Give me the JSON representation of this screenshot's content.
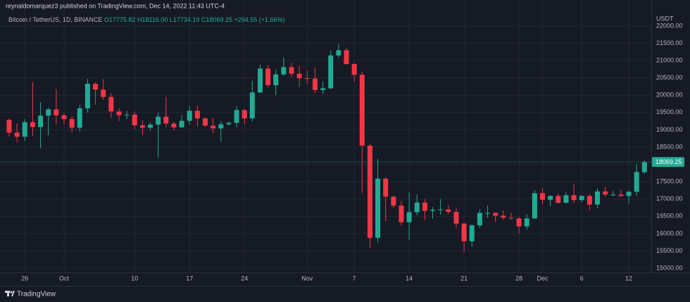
{
  "header": {
    "published": "reynaldomarquez3 published on TradingView.com, Dec 14, 2022 11:43 UTC-4",
    "symbol": "Bitcoin / TetherUS, 1D, BINANCE",
    "ohlc": [
      "O17775.82",
      "H18116.00",
      "L17734.19",
      "C18069.25",
      "+294.55 (+1.66%)"
    ]
  },
  "chart_data": {
    "type": "candlestick",
    "currency": "USDT",
    "up_color": "#22ab94",
    "down_color": "#f23645",
    "grid": true,
    "categories": [
      null,
      null,
      "26",
      null,
      null,
      null,
      null,
      "Oct",
      null,
      null,
      null,
      null,
      null,
      null,
      null,
      null,
      "10",
      null,
      null,
      null,
      null,
      null,
      null,
      "17",
      null,
      null,
      null,
      null,
      null,
      null,
      "24",
      null,
      null,
      null,
      null,
      null,
      null,
      null,
      "Nov",
      null,
      null,
      null,
      null,
      null,
      "7",
      null,
      null,
      null,
      null,
      null,
      null,
      "14",
      null,
      null,
      null,
      null,
      null,
      null,
      "21",
      null,
      null,
      null,
      null,
      null,
      null,
      "28",
      null,
      null,
      "Dec",
      null,
      null,
      null,
      null,
      "6",
      null,
      null,
      null,
      null,
      null,
      "12",
      null,
      null
    ],
    "open": [
      19290,
      18920,
      18800,
      19220,
      19080,
      19410,
      19590,
      19420,
      19310,
      19060,
      19620,
      20330,
      20160,
      19950,
      19530,
      19420,
      19440,
      19130,
      19060,
      19150,
      19380,
      19180,
      19070,
      19260,
      19550,
      19330,
      19120,
      19040,
      19160,
      19200,
      19570,
      19330,
      20080,
      20770,
      20290,
      20600,
      20810,
      20620,
      20490,
      20480,
      20150,
      20200,
      21150,
      21300,
      20900,
      20590,
      18540,
      15880,
      17590,
      17070,
      16810,
      16330,
      16620,
      16900,
      16660,
      16690,
      16700,
      16630,
      16290,
      15780,
      16240,
      16600,
      16600,
      16520,
      16460,
      16440,
      16210,
      16440,
      17170,
      16980,
      17090,
      16890,
      17110,
      16970,
      17090,
      16840,
      17220,
      17130,
      17130,
      17090,
      17210,
      17775.82
    ],
    "high": [
      19320,
      19180,
      19310,
      20380,
      19790,
      19640,
      20180,
      19480,
      19400,
      19720,
      20470,
      20370,
      20460,
      20060,
      19620,
      19550,
      19530,
      19270,
      19220,
      19500,
      19950,
      19230,
      19420,
      19680,
      19700,
      19360,
      19350,
      19250,
      19250,
      19690,
      19600,
      20420,
      20880,
      20860,
      20750,
      21090,
      20930,
      20850,
      20700,
      20800,
      20390,
      21300,
      21480,
      21370,
      20930,
      20670,
      18600,
      18160,
      17630,
      17090,
      16950,
      17190,
      17130,
      17000,
      16770,
      17000,
      16820,
      16740,
      16310,
      16270,
      16700,
      16810,
      16610,
      16670,
      16600,
      16480,
      16560,
      17250,
      17320,
      17110,
      17160,
      17200,
      17420,
      17110,
      17140,
      17300,
      17360,
      17230,
      17270,
      17240,
      18000,
      18116
    ],
    "low": [
      18810,
      18630,
      18680,
      18810,
      18470,
      18840,
      19150,
      19160,
      18920,
      18960,
      19500,
      19730,
      19870,
      19340,
      19250,
      19310,
      19020,
      18860,
      18980,
      18190,
      19070,
      18980,
      19060,
      19160,
      19100,
      19080,
      18900,
      18650,
      19120,
      19070,
      19160,
      19240,
      20060,
      20220,
      20000,
      20560,
      20520,
      20230,
      20330,
      20060,
      20030,
      20180,
      21080,
      20880,
      20390,
      17170,
      15590,
      15750,
      16360,
      16750,
      16230,
      15820,
      16530,
      16400,
      16430,
      16550,
      16560,
      16180,
      15480,
      15620,
      16170,
      16460,
      16330,
      16400,
      16400,
      16000,
      16110,
      16430,
      16860,
      16790,
      16870,
      16880,
      16870,
      16910,
      16680,
      16730,
      17060,
      17090,
      17070,
      16870,
      17090,
      17734.19
    ],
    "close": [
      18920,
      18800,
      19220,
      19080,
      19410,
      19590,
      19420,
      19310,
      19060,
      19620,
      20330,
      20160,
      19950,
      19530,
      19420,
      19440,
      19130,
      19060,
      19150,
      19380,
      19180,
      19070,
      19260,
      19550,
      19330,
      19120,
      19040,
      19160,
      19200,
      19570,
      19330,
      20080,
      20770,
      20290,
      20600,
      20810,
      20620,
      20490,
      20480,
      20150,
      20200,
      21150,
      21300,
      20900,
      20590,
      18540,
      15880,
      17590,
      17070,
      16810,
      16330,
      16620,
      16900,
      16660,
      16690,
      16700,
      16630,
      16290,
      15780,
      16240,
      16600,
      16600,
      16520,
      16460,
      16440,
      16210,
      16440,
      17170,
      16980,
      17090,
      16890,
      17110,
      16970,
      17090,
      16840,
      17220,
      17130,
      17130,
      17090,
      17210,
      17780,
      18069.25
    ],
    "ylim": [
      14880,
      22750
    ],
    "yticks": [
      {
        "value": 15000,
        "label": "15000.00"
      },
      {
        "value": 15500,
        "label": "15500.00"
      },
      {
        "value": 16000,
        "label": "16000.00"
      },
      {
        "value": 16500,
        "label": "16500.00"
      },
      {
        "value": 17000,
        "label": "17000.00"
      },
      {
        "value": 17500,
        "label": "17500.00"
      },
      {
        "value": 18000,
        "label": "18000.00"
      },
      {
        "value": 18500,
        "label": "18500.00"
      },
      {
        "value": 19000,
        "label": "19000.00"
      },
      {
        "value": 19500,
        "label": "19500.00"
      },
      {
        "value": 20000,
        "label": "20000.00"
      },
      {
        "value": 20500,
        "label": "20500.00"
      },
      {
        "value": 21000,
        "label": "21000.00"
      },
      {
        "value": 21500,
        "label": "21500.00"
      },
      {
        "value": 22000,
        "label": "22000.00"
      }
    ]
  },
  "footer": {
    "brand": "TradingView"
  }
}
